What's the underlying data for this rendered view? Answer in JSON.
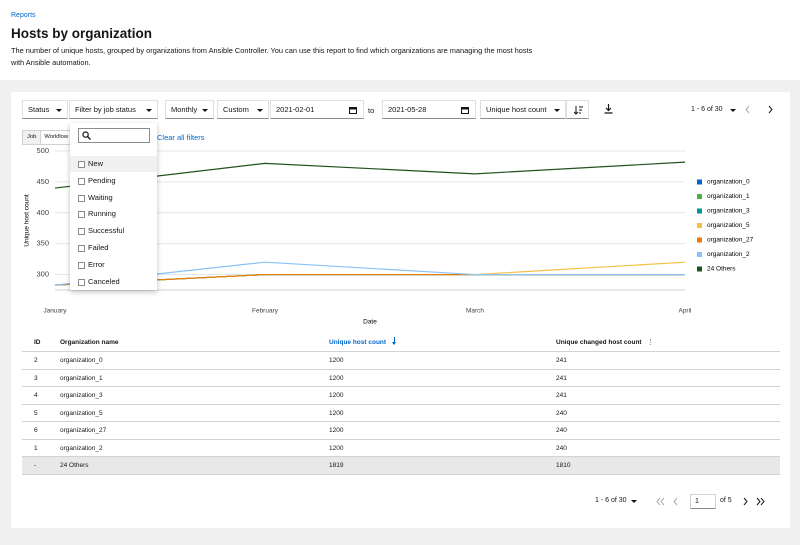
{
  "breadcrumb": "Reports",
  "title": "Hosts by organization",
  "description": "The number of unique hosts, grouped by organizations from Ansible Controller. You can use this report to find which organizations are managing the most hosts with Ansible automation.",
  "toolbar": {
    "status": "Status",
    "job_status_filter": "Filter by job status",
    "granularity": "Monthly",
    "date_range": "Custom",
    "start_date": "2021-02-01",
    "to": "to",
    "end_date": "2021-05-28",
    "sort_by": "Unique host count",
    "pagination": "1 - 6 of 30"
  },
  "toggles": [
    "Job",
    "Workflow"
  ],
  "clear_filters": "Clear all filters",
  "dropdown_options": [
    "New",
    "Pending",
    "Waiting",
    "Running",
    "Successful",
    "Failed",
    "Error",
    "Canceled"
  ],
  "chart_data": {
    "type": "line",
    "x_label": "Date",
    "y_label": "Unique host count",
    "categories": [
      "January",
      "February",
      "March",
      "April"
    ],
    "series": [
      {
        "name": "organization_0",
        "color": "#0066cc",
        "values": [
          283,
          300,
          300,
          300
        ]
      },
      {
        "name": "organization_1",
        "color": "#4cb140",
        "values": [
          283,
          300,
          300,
          300
        ]
      },
      {
        "name": "organization_3",
        "color": "#009596",
        "values": [
          283,
          300,
          300,
          300
        ]
      },
      {
        "name": "organization_5",
        "color": "#f4c145",
        "values": [
          283,
          300,
          300,
          320
        ]
      },
      {
        "name": "organization_27",
        "color": "#ec7a08",
        "values": [
          283,
          300,
          300,
          300
        ]
      },
      {
        "name": "organization_2",
        "color": "#8bc1f7",
        "values": [
          283,
          320,
          300,
          300
        ]
      },
      {
        "name": "24 Others",
        "color": "#23511e",
        "values": [
          440,
          480,
          463,
          482
        ]
      }
    ],
    "ylim": [
      275,
      500
    ],
    "yticks": [
      300,
      350,
      400,
      450,
      500
    ],
    "grid": true,
    "legend": "right"
  },
  "table": {
    "columns": [
      "ID",
      "Organization name",
      "Unique host count",
      "Unique changed host count"
    ],
    "rows": [
      [
        "2",
        "organization_0",
        "1200",
        "241"
      ],
      [
        "3",
        "organization_1",
        "1200",
        "241"
      ],
      [
        "4",
        "organization_3",
        "1200",
        "241"
      ],
      [
        "5",
        "organization_5",
        "1200",
        "240"
      ],
      [
        "6",
        "organization_27",
        "1200",
        "240"
      ],
      [
        "1",
        "organization_2",
        "1200",
        "240"
      ],
      [
        "-",
        "24 Others",
        "1819",
        "1810"
      ]
    ]
  },
  "footer_pagination": {
    "range": "1 - 6 of 30",
    "page": "1",
    "of": "of 5"
  }
}
